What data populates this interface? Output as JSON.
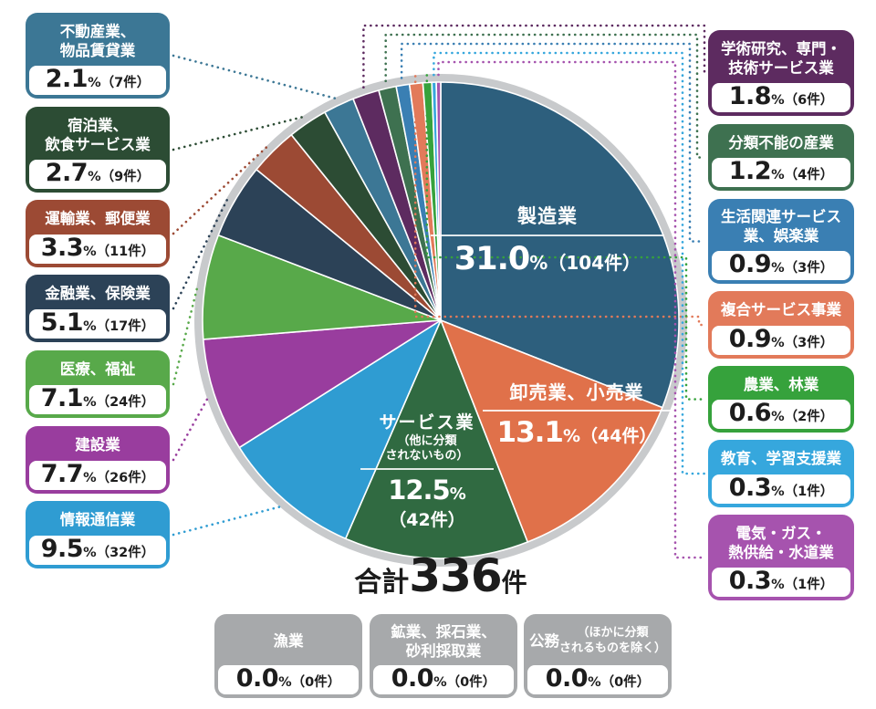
{
  "total": {
    "prefix": "合計",
    "value": "336",
    "unit": "件"
  },
  "inside": [
    {
      "title": "製造業",
      "pct": "31.0",
      "tail": "%（104件）"
    },
    {
      "title": "卸売業、小売業",
      "pct": "13.1",
      "tail": "%（44件）"
    },
    {
      "title": "サービス業",
      "note": "（他に分類\nされないもの）",
      "pct": "12.5",
      "unit": "%",
      "count": "（42件）"
    }
  ],
  "boxes": {
    "left": [
      {
        "key": "real-estate-leasing",
        "title": "不動産業、\n物品賃貸業",
        "pct": "2.1",
        "tail": "%（7件）",
        "color": "#3c7795",
        "slice": 9
      },
      {
        "key": "accommodation-food-services",
        "title": "宿泊業、\n飲食サービス業",
        "pct": "2.7",
        "tail": "%（9件）",
        "color": "#2c4c34",
        "slice": 8
      },
      {
        "key": "transport-postal",
        "title": "運輸業、郵便業",
        "pct": "3.3",
        "tail": "%（11件）",
        "color": "#9c4a34",
        "slice": 7
      },
      {
        "key": "finance-insurance",
        "title": "金融業、保険業",
        "pct": "5.1",
        "tail": "%（17件）",
        "color": "#2c4257",
        "slice": 6
      },
      {
        "key": "medical-welfare",
        "title": "医療、福祉",
        "pct": "7.1",
        "tail": "%（24件）",
        "color": "#58a94a",
        "slice": 5
      },
      {
        "key": "construction",
        "title": "建設業",
        "pct": "7.7",
        "tail": "%（26件）",
        "color": "#993d9e",
        "slice": 4
      },
      {
        "key": "information-communications",
        "title": "情報通信業",
        "pct": "9.5",
        "tail": "%（32件）",
        "color": "#2f9cd2",
        "slice": 3
      }
    ],
    "right": [
      {
        "key": "academic-research-technical",
        "title": "学術研究、専門・\n技術サービス業",
        "pct": "1.8",
        "tail": "%（6件）",
        "color": "#5d2b60",
        "slice": 10
      },
      {
        "key": "unclassifiable-industries",
        "title": "分類不能の産業",
        "pct": "1.2",
        "tail": "%（4件）",
        "color": "#3e7150",
        "slice": 11
      },
      {
        "key": "life-related-services",
        "title": "生活関連サービス\n業、娯楽業",
        "pct": "0.9",
        "tail": "%（3件）",
        "color": "#3a7fb3",
        "slice": 12
      },
      {
        "key": "compound-services",
        "title": "複合サービス事業",
        "pct": "0.9",
        "tail": "%（3件）",
        "color": "#e27a5a",
        "slice": 13
      },
      {
        "key": "agriculture-forestry",
        "title": "農業、林業",
        "pct": "0.6",
        "tail": "%（2件）",
        "color": "#36a23c",
        "slice": 14
      },
      {
        "key": "education-learning-support",
        "title": "教育、学習支援業",
        "pct": "0.3",
        "tail": "%（1件）",
        "color": "#36a7dd",
        "slice": 15
      },
      {
        "key": "electricity-gas-heat-water",
        "title": "電気・ガス・\n熱供給・水道業",
        "pct": "0.3",
        "tail": "%（1件）",
        "color": "#a653ae",
        "slice": 16
      }
    ],
    "bottom": [
      {
        "key": "fishery",
        "title": "漁業",
        "pct": "0.0",
        "tail": "%（0件）",
        "color": "#a7a9ab"
      },
      {
        "key": "mining-quarrying-gravel",
        "title": "鉱業、採石業、\n砂利採取業",
        "pct": "0.0",
        "tail": "%（0件）",
        "color": "#a7a9ab"
      },
      {
        "key": "government-services",
        "title": "公務",
        "note": "（ほかに分類\nされるものを除く）",
        "pct": "0.0",
        "tail": "%（0件）",
        "color": "#a7a9ab"
      }
    ]
  },
  "chart_data": {
    "type": "pie",
    "total_label": "合計336件",
    "total_count": 336,
    "unit": "件",
    "start": "12-oclock",
    "direction": "clockwise",
    "ring_color": "#c8cacc",
    "slices": [
      {
        "key": "manufacturing",
        "name": "製造業",
        "pct": 31.0,
        "count": 104,
        "color": "#2d5f7d"
      },
      {
        "key": "wholesale-retail",
        "name": "卸売業、小売業",
        "pct": 13.1,
        "count": 44,
        "color": "#e0714a"
      },
      {
        "key": "services-nec",
        "name": "サービス業（他に分類されないもの）",
        "pct": 12.5,
        "count": 42,
        "color": "#306a41"
      },
      {
        "key": "information-communications",
        "name": "情報通信業",
        "pct": 9.5,
        "count": 32,
        "color": "#2f9cd2"
      },
      {
        "key": "construction",
        "name": "建設業",
        "pct": 7.7,
        "count": 26,
        "color": "#993d9e"
      },
      {
        "key": "medical-welfare",
        "name": "医療、福祉",
        "pct": 7.1,
        "count": 24,
        "color": "#58a94a"
      },
      {
        "key": "finance-insurance",
        "name": "金融業、保険業",
        "pct": 5.1,
        "count": 17,
        "color": "#2c4257"
      },
      {
        "key": "transport-postal",
        "name": "運輸業、郵便業",
        "pct": 3.3,
        "count": 11,
        "color": "#9c4a34"
      },
      {
        "key": "accommodation-food-services",
        "name": "宿泊業、飲食サービス業",
        "pct": 2.7,
        "count": 9,
        "color": "#2c4c34"
      },
      {
        "key": "real-estate-leasing",
        "name": "不動産業、物品賃貸業",
        "pct": 2.1,
        "count": 7,
        "color": "#3c7795"
      },
      {
        "key": "academic-research-technical",
        "name": "学術研究、専門・技術サービス業",
        "pct": 1.8,
        "count": 6,
        "color": "#5d2b60"
      },
      {
        "key": "unclassifiable-industries",
        "name": "分類不能の産業",
        "pct": 1.2,
        "count": 4,
        "color": "#3e7150"
      },
      {
        "key": "life-related-services",
        "name": "生活関連サービス業、娯楽業",
        "pct": 0.9,
        "count": 3,
        "color": "#3a7fb3"
      },
      {
        "key": "compound-services",
        "name": "複合サービス事業",
        "pct": 0.9,
        "count": 3,
        "color": "#e27a5a"
      },
      {
        "key": "agriculture-forestry",
        "name": "農業、林業",
        "pct": 0.6,
        "count": 2,
        "color": "#36a23c"
      },
      {
        "key": "education-learning-support",
        "name": "教育、学習支援業",
        "pct": 0.3,
        "count": 1,
        "color": "#36a7dd"
      },
      {
        "key": "electricity-gas-heat-water",
        "name": "電気・ガス・熱供給・水道業",
        "pct": 0.3,
        "count": 1,
        "color": "#a653ae"
      },
      {
        "key": "fishery",
        "name": "漁業",
        "pct": 0.0,
        "count": 0,
        "color": "#a7a9ab"
      },
      {
        "key": "mining-quarrying-gravel",
        "name": "鉱業、採石業、砂利採取業",
        "pct": 0.0,
        "count": 0,
        "color": "#a7a9ab"
      },
      {
        "key": "government-services",
        "name": "公務（ほかに分類されるものを除く）",
        "pct": 0.0,
        "count": 0,
        "color": "#a7a9ab"
      }
    ]
  }
}
